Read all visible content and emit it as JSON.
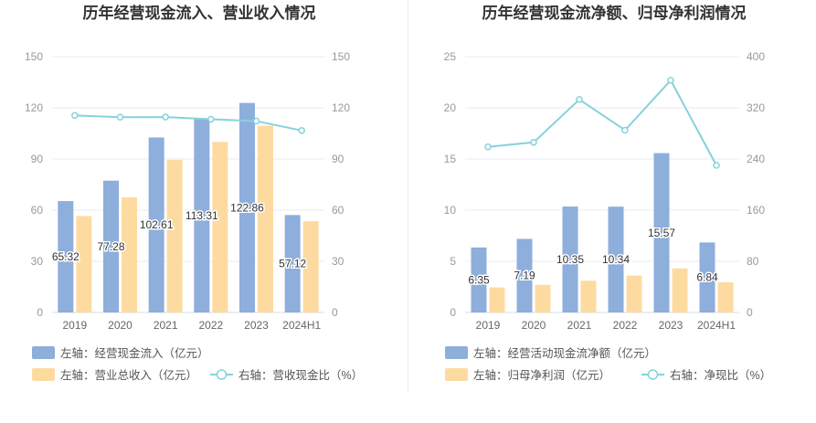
{
  "chart_data": [
    {
      "type": "bar",
      "title": "历年经营现金流入、营业收入情况",
      "categories": [
        "2019",
        "2020",
        "2021",
        "2022",
        "2023",
        "2024H1"
      ],
      "left_axis": {
        "min": 0,
        "max": 150,
        "ticks": [
          "0",
          "30",
          "60",
          "90",
          "120",
          "150"
        ]
      },
      "right_axis": {
        "min": 0,
        "max": 150,
        "ticks": [
          "0",
          "30",
          "60",
          "90",
          "120",
          "150"
        ]
      },
      "series": [
        {
          "name": "左轴：经营现金流入（亿元）",
          "kind": "bar",
          "axis": "left",
          "color": "#8eaedc",
          "values": [
            65.32,
            77.28,
            102.61,
            113.31,
            122.86,
            57.12
          ],
          "labels": [
            "65.32",
            "77.28",
            "102.61",
            "113.31",
            "122.86",
            "57.12"
          ]
        },
        {
          "name": "左轴：营业总收入（亿元）",
          "kind": "bar",
          "axis": "left",
          "color": "#fddba0",
          "values": [
            56.5,
            67.5,
            89.5,
            100.0,
            109.5,
            53.5
          ]
        },
        {
          "name": "右轴：营收现金比（%）",
          "kind": "line",
          "axis": "right",
          "color": "#86d2db",
          "values": [
            115.5,
            114.5,
            114.6,
            113.3,
            112.2,
            106.7
          ]
        }
      ],
      "grid": true
    },
    {
      "type": "bar",
      "title": "历年经营现金流净额、归母净利润情况",
      "categories": [
        "2019",
        "2020",
        "2021",
        "2022",
        "2023",
        "2024H1"
      ],
      "left_axis": {
        "min": 0,
        "max": 25,
        "ticks": [
          "0",
          "5",
          "10",
          "15",
          "20",
          "25"
        ]
      },
      "right_axis": {
        "min": 0,
        "max": 400,
        "ticks": [
          "0",
          "80",
          "160",
          "240",
          "320",
          "400"
        ]
      },
      "series": [
        {
          "name": "左轴：经营活动现金流净额（亿元）",
          "kind": "bar",
          "axis": "left",
          "color": "#8eaedc",
          "values": [
            6.35,
            7.19,
            10.35,
            10.34,
            15.57,
            6.84
          ],
          "labels": [
            "6.35",
            "7.19",
            "10.35",
            "10.34",
            "15.57",
            "6.84"
          ]
        },
        {
          "name": "左轴：归母净利润（亿元）",
          "kind": "bar",
          "axis": "left",
          "color": "#fddba0",
          "values": [
            2.45,
            2.7,
            3.1,
            3.6,
            4.3,
            2.95
          ]
        },
        {
          "name": "右轴：净现比（%）",
          "kind": "line",
          "axis": "right",
          "color": "#86d2db",
          "values": [
            259,
            266,
            333,
            285,
            363,
            230
          ]
        }
      ],
      "grid": true
    }
  ]
}
